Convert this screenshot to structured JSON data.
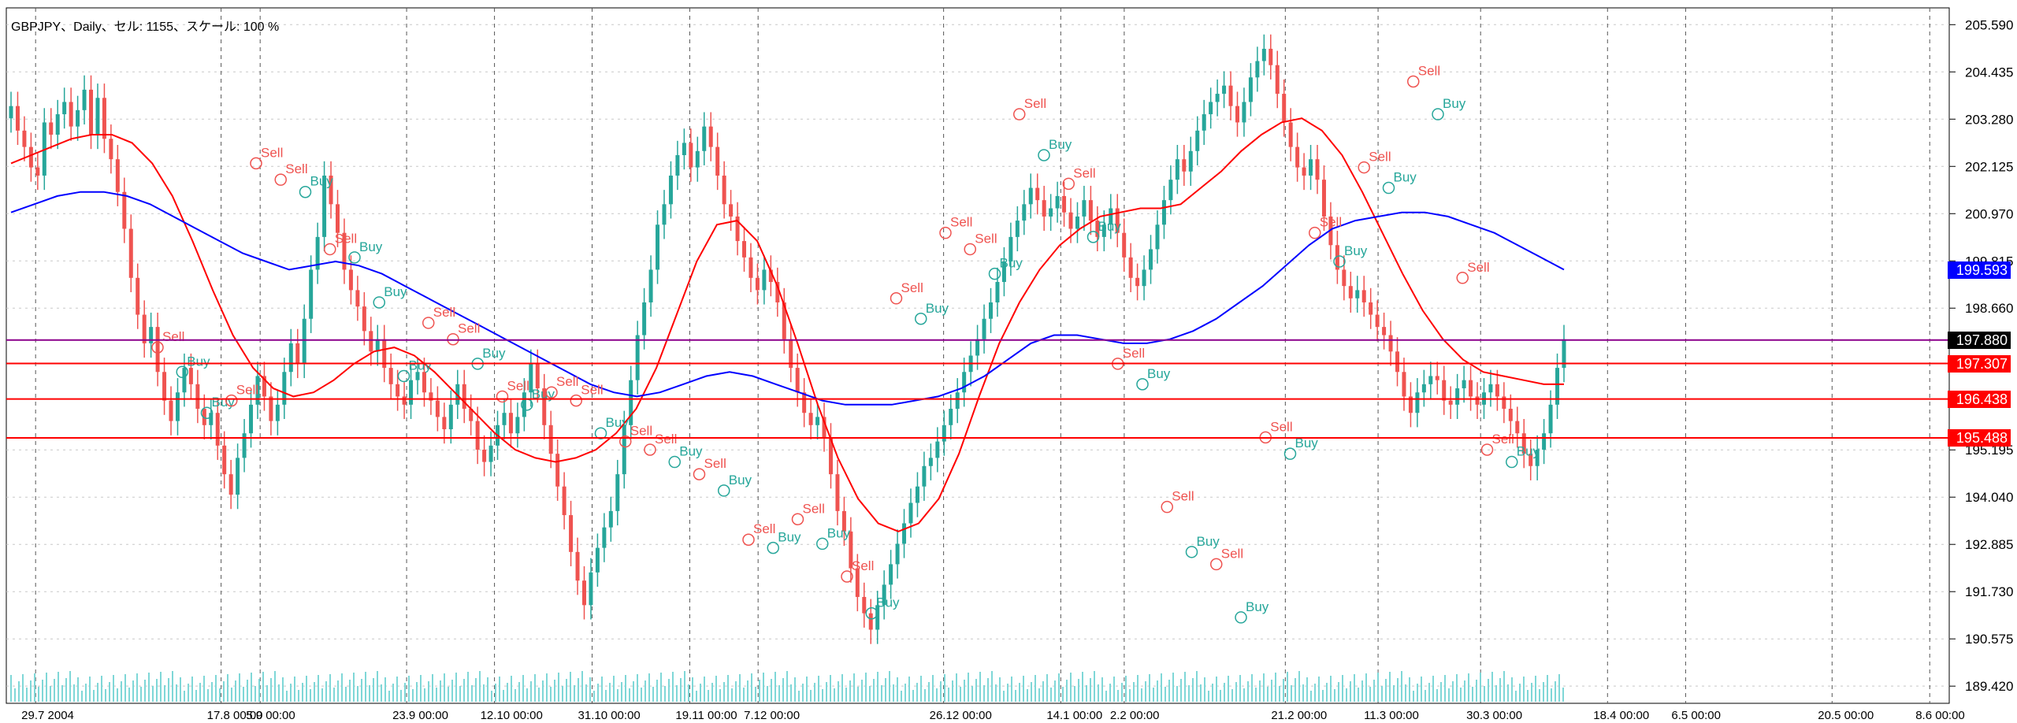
{
  "window": {
    "title": "GBPJPY、Daily、セル: 1155、スケール: 100 %"
  },
  "chart_data": {
    "type": "line",
    "symbol": "GBPJPY",
    "timeframe": "Daily",
    "y_axis": {
      "ticks": [
        205.59,
        204.435,
        203.28,
        202.125,
        200.97,
        199.815,
        198.66,
        197.88,
        197.307,
        196.438,
        195.488,
        195.195,
        194.04,
        192.885,
        191.73,
        190.575,
        189.42
      ],
      "ylim": [
        189.0,
        206.0
      ]
    },
    "x_axis": {
      "tick_labels": [
        "29.7 2004",
        "17.8 00:00",
        "5.9 00:00",
        "23.9 00:00",
        "12.10 00:00",
        "31.10 00:00",
        "19.11 00:00",
        "7.12 00:00",
        "26.12 00:00",
        "14.1 00:00",
        "2.2 00:00",
        "21.2 00:00",
        "11.3 00:00",
        "30.3 00:00",
        "18.4 00:00",
        "6.5 00:00",
        "20.5 00:00",
        "8.6 00:00"
      ]
    },
    "horizontal_levels": [
      {
        "value": 197.88,
        "color": "#8b008b",
        "tag_bg": "#000000",
        "tag_fg": "#ffffff",
        "label": "197.880"
      },
      {
        "value": 197.307,
        "color": "#ff0000",
        "tag_bg": "#ff0000",
        "tag_fg": "#ffffff",
        "label": "197.307"
      },
      {
        "value": 196.438,
        "color": "#ff0000",
        "tag_bg": "#ff0000",
        "tag_fg": "#ffffff",
        "label": "196.438"
      },
      {
        "value": 195.488,
        "color": "#ff0000",
        "tag_bg": "#ff0000",
        "tag_fg": "#ffffff",
        "label": "195.488"
      },
      {
        "value": 199.593,
        "color": "#0000ff",
        "tag_bg": "#0000ff",
        "tag_fg": "#ffffff",
        "label": "199.593",
        "line": false
      }
    ],
    "candles_close": [
      203.6,
      203.0,
      202.6,
      202.1,
      201.9,
      203.2,
      202.9,
      203.4,
      203.7,
      203.1,
      203.5,
      204.0,
      202.9,
      203.8,
      202.8,
      202.3,
      201.5,
      200.6,
      199.4,
      198.5,
      197.8,
      198.2,
      197.1,
      196.4,
      195.9,
      196.6,
      197.2,
      196.8,
      196.2,
      195.8,
      196.1,
      195.3,
      194.6,
      194.1,
      195.0,
      195.6,
      196.3,
      197.0,
      196.5,
      195.9,
      196.3,
      197.1,
      197.8,
      197.3,
      198.4,
      199.6,
      200.4,
      201.9,
      201.2,
      200.5,
      199.6,
      199.1,
      198.7,
      198.1,
      197.6,
      197.9,
      197.2,
      196.8,
      196.5,
      196.3,
      196.9,
      197.1,
      196.6,
      196.4,
      196.0,
      195.7,
      196.3,
      196.8,
      196.2,
      195.9,
      195.2,
      194.9,
      195.3,
      195.8,
      196.1,
      195.6,
      196.0,
      196.6,
      197.3,
      196.7,
      195.8,
      195.1,
      194.3,
      193.6,
      192.7,
      192.0,
      191.4,
      192.2,
      192.8,
      193.3,
      193.7,
      194.6,
      195.8,
      196.9,
      198.0,
      198.8,
      199.6,
      200.7,
      201.2,
      201.9,
      202.4,
      202.7,
      202.1,
      202.5,
      203.1,
      202.6,
      201.9,
      201.2,
      200.9,
      200.3,
      199.9,
      199.4,
      199.1,
      199.6,
      199.3,
      198.8,
      197.9,
      197.2,
      196.6,
      196.1,
      195.8,
      196.0,
      195.5,
      194.6,
      193.7,
      193.2,
      192.3,
      191.6,
      191.2,
      190.8,
      191.4,
      191.9,
      192.4,
      192.9,
      193.4,
      193.9,
      194.3,
      194.8,
      195.0,
      195.4,
      195.8,
      196.2,
      196.6,
      197.1,
      197.5,
      197.9,
      198.4,
      198.8,
      199.3,
      199.8,
      200.4,
      200.8,
      201.2,
      201.6,
      201.3,
      200.9,
      201.1,
      201.4,
      201.0,
      200.6,
      200.9,
      201.3,
      200.8,
      200.4,
      200.7,
      201.1,
      200.5,
      199.9,
      199.4,
      199.2,
      199.6,
      200.1,
      200.7,
      201.3,
      201.8,
      202.3,
      202.0,
      202.5,
      203.0,
      203.4,
      203.7,
      203.9,
      204.1,
      203.6,
      203.2,
      203.7,
      204.3,
      204.7,
      205.0,
      204.6,
      203.9,
      203.2,
      202.6,
      202.1,
      201.9,
      202.3,
      201.8,
      200.9,
      200.2,
      199.6,
      199.2,
      198.9,
      199.1,
      198.8,
      198.5,
      198.2,
      198.0,
      197.6,
      197.1,
      196.5,
      196.1,
      196.6,
      196.8,
      197.0,
      196.9,
      196.4,
      196.3,
      196.7,
      196.9,
      196.5,
      196.3,
      196.6,
      196.8,
      196.5,
      196.2,
      195.9,
      195.6,
      195.1,
      194.8,
      195.2,
      195.6,
      196.3,
      197.2,
      197.9
    ],
    "ma_red": [
      202.2,
      202.4,
      202.6,
      202.8,
      202.9,
      202.9,
      202.7,
      202.2,
      201.4,
      200.3,
      199.1,
      198.0,
      197.2,
      196.7,
      196.5,
      196.6,
      196.9,
      197.3,
      197.6,
      197.7,
      197.5,
      197.1,
      196.6,
      196.1,
      195.6,
      195.2,
      195.0,
      194.9,
      195.0,
      195.2,
      195.6,
      196.2,
      197.2,
      198.5,
      199.8,
      200.7,
      200.8,
      200.3,
      199.2,
      197.8,
      196.3,
      195.0,
      194.0,
      193.4,
      193.2,
      193.4,
      194.0,
      195.1,
      196.5,
      197.8,
      198.8,
      199.6,
      200.2,
      200.6,
      200.9,
      201.0,
      201.1,
      201.1,
      201.2,
      201.6,
      202.0,
      202.5,
      202.9,
      203.2,
      203.3,
      203.0,
      202.4,
      201.5,
      200.5,
      199.5,
      198.6,
      197.9,
      197.4,
      197.1,
      197.0,
      196.9,
      196.8,
      196.8
    ],
    "ma_blue": [
      201.0,
      201.2,
      201.4,
      201.5,
      201.5,
      201.4,
      201.2,
      200.9,
      200.6,
      200.3,
      200.0,
      199.8,
      199.6,
      199.7,
      199.8,
      199.7,
      199.5,
      199.2,
      198.9,
      198.6,
      198.3,
      198.0,
      197.7,
      197.4,
      197.1,
      196.8,
      196.6,
      196.5,
      196.6,
      196.8,
      197.0,
      197.1,
      197.0,
      196.8,
      196.6,
      196.4,
      196.3,
      196.3,
      196.3,
      196.4,
      196.5,
      196.7,
      197.0,
      197.4,
      197.8,
      198.0,
      198.0,
      197.9,
      197.8,
      197.8,
      197.9,
      198.1,
      198.4,
      198.8,
      199.2,
      199.7,
      200.2,
      200.6,
      200.8,
      200.9,
      201.0,
      201.0,
      200.9,
      200.7,
      200.5,
      200.2,
      199.9,
      199.6
    ],
    "signals": [
      {
        "label": "Sell",
        "price": 197.7
      },
      {
        "label": "Buy",
        "price": 197.1
      },
      {
        "label": "Buy",
        "price": 196.1
      },
      {
        "label": "Sell",
        "price": 196.4
      },
      {
        "label": "Sell",
        "price": 202.2
      },
      {
        "label": "Sell",
        "price": 201.8
      },
      {
        "label": "Buy",
        "price": 201.5
      },
      {
        "label": "Sell",
        "price": 200.1
      },
      {
        "label": "Buy",
        "price": 199.9
      },
      {
        "label": "Buy",
        "price": 198.8
      },
      {
        "label": "Buy",
        "price": 197.0
      },
      {
        "label": "Sell",
        "price": 198.3
      },
      {
        "label": "Sell",
        "price": 197.9
      },
      {
        "label": "Buy",
        "price": 197.3
      },
      {
        "label": "Sell",
        "price": 196.5
      },
      {
        "label": "Buy",
        "price": 196.3
      },
      {
        "label": "Sell",
        "price": 196.6
      },
      {
        "label": "Sell",
        "price": 196.4
      },
      {
        "label": "Buy",
        "price": 195.6
      },
      {
        "label": "Sell",
        "price": 195.4
      },
      {
        "label": "Sell",
        "price": 195.2
      },
      {
        "label": "Buy",
        "price": 194.9
      },
      {
        "label": "Sell",
        "price": 194.6
      },
      {
        "label": "Buy",
        "price": 194.2
      },
      {
        "label": "Sell",
        "price": 193.0
      },
      {
        "label": "Buy",
        "price": 192.8
      },
      {
        "label": "Sell",
        "price": 193.5
      },
      {
        "label": "Buy",
        "price": 192.9
      },
      {
        "label": "Sell",
        "price": 192.1
      },
      {
        "label": "Buy",
        "price": 191.2
      },
      {
        "label": "Sell",
        "price": 198.9
      },
      {
        "label": "Buy",
        "price": 198.4
      },
      {
        "label": "Sell",
        "price": 200.5
      },
      {
        "label": "Sell",
        "price": 200.1
      },
      {
        "label": "Buy",
        "price": 199.5
      },
      {
        "label": "Sell",
        "price": 203.4
      },
      {
        "label": "Buy",
        "price": 202.4
      },
      {
        "label": "Sell",
        "price": 201.7
      },
      {
        "label": "Buy",
        "price": 200.4
      },
      {
        "label": "Sell",
        "price": 197.3
      },
      {
        "label": "Buy",
        "price": 196.8
      },
      {
        "label": "Sell",
        "price": 193.8
      },
      {
        "label": "Buy",
        "price": 192.7
      },
      {
        "label": "Sell",
        "price": 192.4
      },
      {
        "label": "Buy",
        "price": 191.1
      },
      {
        "label": "Sell",
        "price": 195.5
      },
      {
        "label": "Buy",
        "price": 195.1
      },
      {
        "label": "Sell",
        "price": 200.5
      },
      {
        "label": "Buy",
        "price": 199.8
      },
      {
        "label": "Sell",
        "price": 202.1
      },
      {
        "label": "Buy",
        "price": 201.6
      },
      {
        "label": "Sell",
        "price": 204.2
      },
      {
        "label": "Buy",
        "price": 203.4
      },
      {
        "label": "Sell",
        "price": 199.4
      },
      {
        "label": "Sell",
        "price": 195.2
      },
      {
        "label": "Buy",
        "price": 194.9
      }
    ]
  },
  "colors": {
    "bull": "#26a69a",
    "bear": "#ef5350",
    "ma_red": "#ff0000",
    "ma_blue": "#0000ff",
    "grid": "#c8c8c8",
    "separator": "#555555",
    "volume": "#7fd7d7",
    "sell": "#ef5350",
    "buy": "#26a69a"
  }
}
